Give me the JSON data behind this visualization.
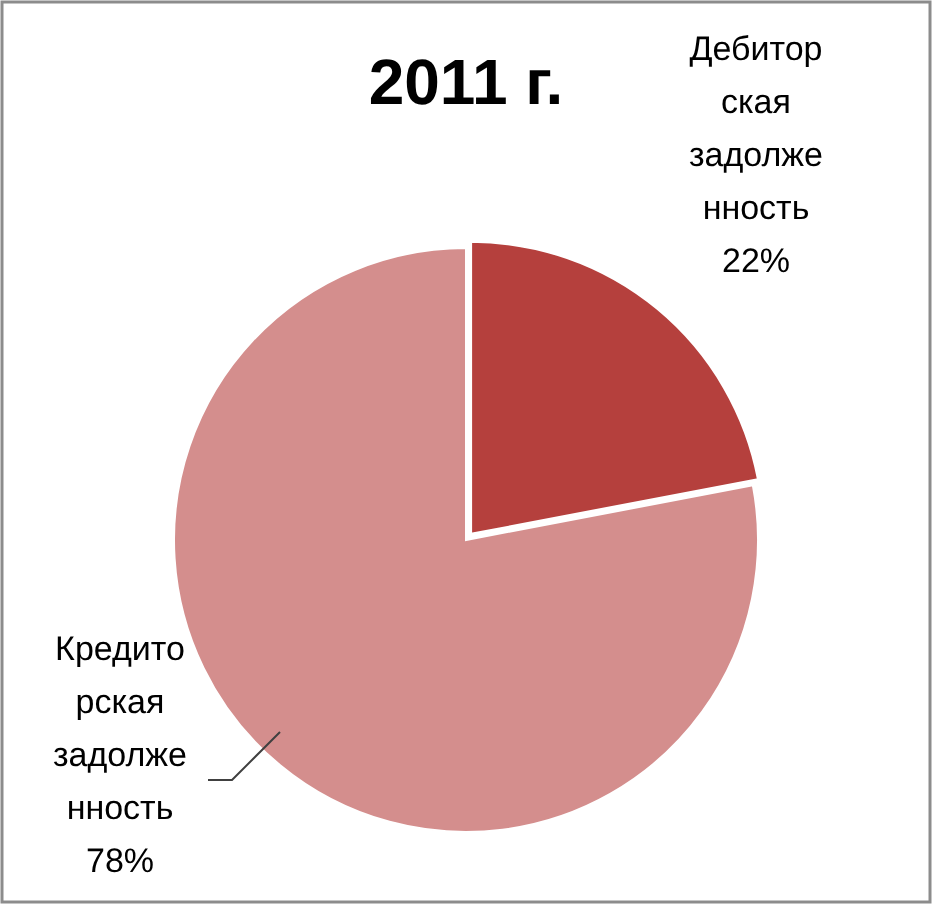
{
  "chart_data": {
    "type": "pie",
    "title": "2011 г.",
    "categories": [
      "Дебиторская задолженность",
      "Кредиторская задолженность"
    ],
    "values": [
      22,
      78
    ],
    "colors": [
      "#b5403d",
      "#d48e8d"
    ],
    "value_labels": [
      "22%",
      "78%"
    ]
  }
}
